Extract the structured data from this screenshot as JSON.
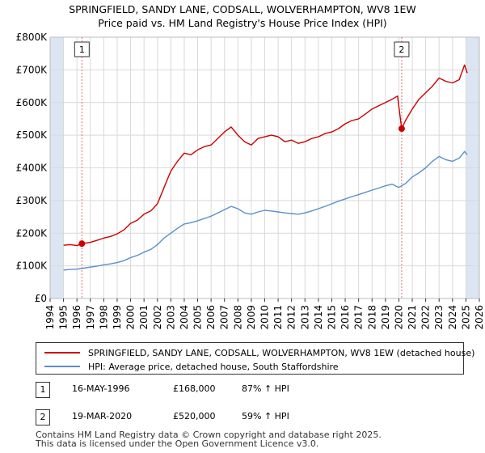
{
  "title_line1": "SPRINGFIELD, SANDY LANE, CODSALL, WOLVERHAMPTON, WV8 1EW",
  "title_line2": "Price paid vs. HM Land Registry's House Price Index (HPI)",
  "colors": {
    "property": "#cc0000",
    "hpi": "#5b8fc9",
    "grid": "#d9d9d9",
    "shade": "#dce6f2",
    "marker_line": "#e07070"
  },
  "chart_data": {
    "type": "line",
    "title": "SPRINGFIELD, SANDY LANE, CODSALL, WOLVERHAMPTON, WV8 1EW Price paid vs. HM Land Registry's House Price Index (HPI)",
    "xlabel": "",
    "ylabel": "",
    "xlim": [
      1994,
      2026
    ],
    "ylim": [
      0,
      800000
    ],
    "x_ticks": [
      "1994",
      "1995",
      "1996",
      "1997",
      "1998",
      "1999",
      "2000",
      "2001",
      "2002",
      "2003",
      "2004",
      "2005",
      "2006",
      "2007",
      "2008",
      "2009",
      "2010",
      "2011",
      "2012",
      "2013",
      "2014",
      "2015",
      "2016",
      "2017",
      "2018",
      "2019",
      "2020",
      "2021",
      "2022",
      "2023",
      "2024",
      "2025",
      "2026"
    ],
    "y_ticks": [
      {
        "value": 0,
        "label": "£0"
      },
      {
        "value": 100000,
        "label": "£100K"
      },
      {
        "value": 200000,
        "label": "£200K"
      },
      {
        "value": 300000,
        "label": "£300K"
      },
      {
        "value": 400000,
        "label": "£400K"
      },
      {
        "value": 500000,
        "label": "£500K"
      },
      {
        "value": 600000,
        "label": "£600K"
      },
      {
        "value": 700000,
        "label": "£700K"
      },
      {
        "value": 800000,
        "label": "£800K"
      }
    ],
    "shaded_regions": [
      [
        1994,
        1995.0
      ],
      [
        2025.0,
        2026
      ]
    ],
    "series": [
      {
        "name": "SPRINGFIELD, SANDY LANE, CODSALL, WOLVERHAMPTON, WV8 1EW (detached house)",
        "color": "#cc0000",
        "x": [
          1995.0,
          1995.5,
          1996.0,
          1996.37,
          1997.0,
          1997.5,
          1998.0,
          1998.5,
          1999.0,
          1999.5,
          2000.0,
          2000.5,
          2001.0,
          2001.5,
          2002.0,
          2002.5,
          2003.0,
          2003.5,
          2004.0,
          2004.5,
          2005.0,
          2005.5,
          2006.0,
          2006.5,
          2007.0,
          2007.5,
          2008.0,
          2008.5,
          2009.0,
          2009.5,
          2010.0,
          2010.5,
          2011.0,
          2011.5,
          2012.0,
          2012.5,
          2013.0,
          2013.5,
          2014.0,
          2014.5,
          2015.0,
          2015.5,
          2016.0,
          2016.5,
          2017.0,
          2017.5,
          2018.0,
          2018.5,
          2019.0,
          2019.5,
          2019.9,
          2020.21,
          2020.5,
          2021.0,
          2021.5,
          2022.0,
          2022.5,
          2023.0,
          2023.5,
          2024.0,
          2024.5,
          2024.9,
          2025.1
        ],
        "y": [
          163000,
          165000,
          162000,
          168000,
          172000,
          178000,
          185000,
          190000,
          198000,
          210000,
          230000,
          240000,
          258000,
          268000,
          290000,
          340000,
          390000,
          420000,
          445000,
          440000,
          455000,
          465000,
          470000,
          490000,
          510000,
          525000,
          500000,
          480000,
          470000,
          490000,
          495000,
          500000,
          495000,
          480000,
          485000,
          475000,
          480000,
          490000,
          495000,
          505000,
          510000,
          520000,
          535000,
          545000,
          550000,
          565000,
          580000,
          590000,
          600000,
          610000,
          620000,
          520000,
          545000,
          580000,
          610000,
          630000,
          650000,
          675000,
          665000,
          660000,
          670000,
          715000,
          690000
        ]
      },
      {
        "name": "HPI: Average price, detached house, South Staffordshire",
        "color": "#5b8fc9",
        "x": [
          1995.0,
          1995.5,
          1996.0,
          1996.5,
          1997.0,
          1997.5,
          1998.0,
          1998.5,
          1999.0,
          1999.5,
          2000.0,
          2000.5,
          2001.0,
          2001.5,
          2002.0,
          2002.5,
          2003.0,
          2003.5,
          2004.0,
          2004.5,
          2005.0,
          2005.5,
          2006.0,
          2006.5,
          2007.0,
          2007.5,
          2008.0,
          2008.5,
          2009.0,
          2009.5,
          2010.0,
          2010.5,
          2011.0,
          2011.5,
          2012.0,
          2012.5,
          2013.0,
          2013.5,
          2014.0,
          2014.5,
          2015.0,
          2015.5,
          2016.0,
          2016.5,
          2017.0,
          2017.5,
          2018.0,
          2018.5,
          2019.0,
          2019.5,
          2020.0,
          2020.5,
          2021.0,
          2021.5,
          2022.0,
          2022.5,
          2023.0,
          2023.5,
          2024.0,
          2024.5,
          2024.9,
          2025.1
        ],
        "y": [
          87000,
          89000,
          90000,
          93000,
          96000,
          99000,
          103000,
          106000,
          110000,
          116000,
          125000,
          132000,
          142000,
          150000,
          165000,
          185000,
          200000,
          215000,
          228000,
          232000,
          238000,
          245000,
          252000,
          262000,
          272000,
          282000,
          275000,
          262000,
          258000,
          265000,
          270000,
          268000,
          265000,
          262000,
          260000,
          258000,
          262000,
          268000,
          275000,
          282000,
          290000,
          298000,
          305000,
          312000,
          318000,
          325000,
          332000,
          338000,
          345000,
          350000,
          340000,
          352000,
          372000,
          385000,
          400000,
          420000,
          435000,
          425000,
          420000,
          430000,
          450000,
          440000
        ]
      }
    ],
    "sales": [
      {
        "label": "1",
        "x": 1996.37,
        "y": 168000
      },
      {
        "label": "2",
        "x": 2020.21,
        "y": 520000
      }
    ]
  },
  "legend": {
    "property_label": "SPRINGFIELD, SANDY LANE, CODSALL, WOLVERHAMPTON, WV8 1EW (detached house)",
    "hpi_label": "HPI: Average price, detached house, South Staffordshire"
  },
  "sales_table": [
    {
      "num": "1",
      "date": "16-MAY-1996",
      "price": "£168,000",
      "hpi": "87% ↑ HPI"
    },
    {
      "num": "2",
      "date": "19-MAR-2020",
      "price": "£520,000",
      "hpi": "59% ↑ HPI"
    }
  ],
  "footer": {
    "line1": "Contains HM Land Registry data © Crown copyright and database right 2025.",
    "line2": "This data is licensed under the Open Government Licence v3.0."
  }
}
